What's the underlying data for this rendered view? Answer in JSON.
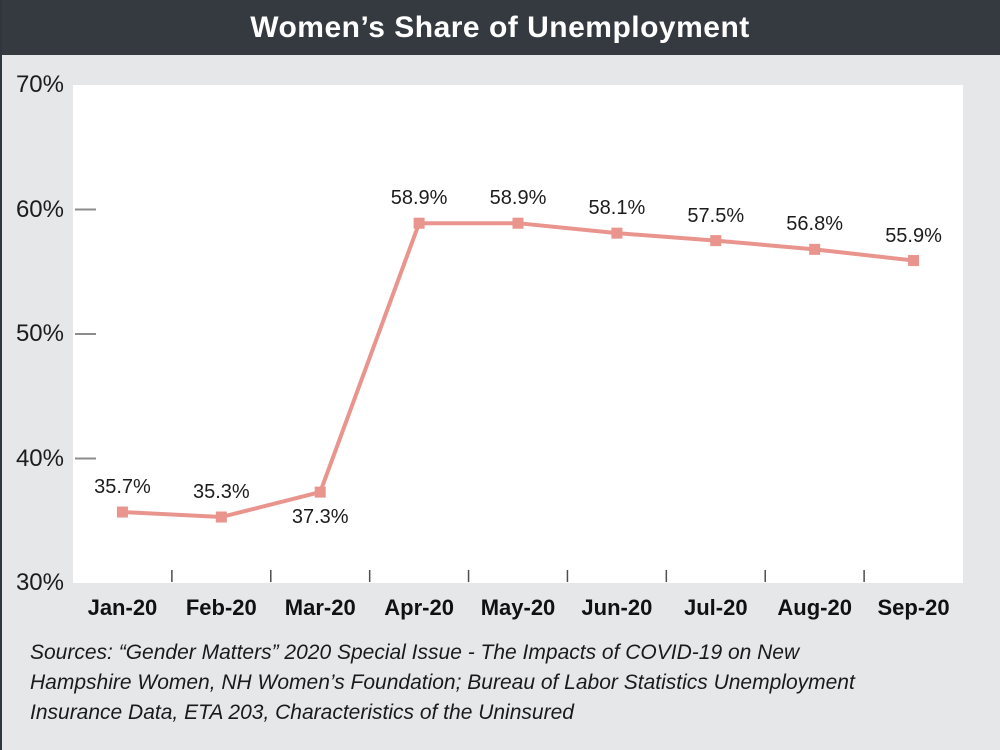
{
  "header": {
    "title": "Women’s Share of Unemployment"
  },
  "footer": {
    "source_lines": [
      "Sources: “Gender Matters” 2020 Special Issue - The Impacts of COVID-19 on New",
      "Hampshire Women, NH Women’s Foundation; Bureau of Labor Statistics Unemployment",
      "Insurance Data, ETA 203, Characteristics of the Uninsured"
    ]
  },
  "colors": {
    "header_bg": "#343a40",
    "page_bg": "#e6e7e9",
    "plot_bg": "#ffffff",
    "line": "#e9948d",
    "y_tick": "#8c8c8c",
    "x_tick": "#4d4d4d",
    "text": "#1a1a1a"
  },
  "chart_data": {
    "type": "line",
    "title": "Women's Share of Unemployment",
    "categories": [
      "Jan-20",
      "Feb-20",
      "Mar-20",
      "Apr-20",
      "May-20",
      "Jun-20",
      "Jul-20",
      "Aug-20",
      "Sep-20"
    ],
    "values": [
      35.7,
      35.3,
      37.3,
      58.9,
      58.9,
      58.1,
      57.5,
      56.8,
      55.9
    ],
    "point_labels": [
      "35.7%",
      "35.3%",
      "37.3%",
      "58.9%",
      "58.9%",
      "58.1%",
      "57.5%",
      "56.8%",
      "55.9%"
    ],
    "point_label_positions": [
      "above",
      "above",
      "below",
      "above",
      "above",
      "above",
      "above",
      "above",
      "above"
    ],
    "xlabel": "",
    "ylabel": "",
    "ylim": [
      30,
      70
    ],
    "y_ticks": [
      30,
      40,
      50,
      60,
      70
    ],
    "y_tick_labels": [
      "30%",
      "40%",
      "50%",
      "60%",
      "70%"
    ],
    "grid": false,
    "legend": false,
    "marker": "square",
    "line_color": "#e9948d"
  }
}
